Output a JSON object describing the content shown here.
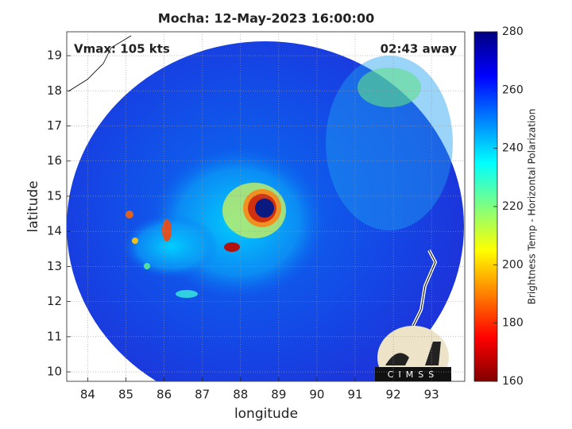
{
  "chart_data": {
    "type": "heatmap",
    "title": "Mocha: 12-May-2023 16:00:00",
    "annotations": [
      "Vmax: 105 kts",
      "02:43 away"
    ],
    "x_label": "longitude",
    "y_label": "latitude",
    "xlim": [
      83.45,
      93.87
    ],
    "ylim": [
      9.73,
      19.68
    ],
    "xticks": [
      84,
      85,
      86,
      87,
      88,
      89,
      90,
      91,
      92,
      93
    ],
    "yticks": [
      10,
      11,
      12,
      13,
      14,
      15,
      16,
      17,
      18,
      19
    ],
    "grid": true,
    "colorbar": {
      "label": "Brightness Temp - Horizontal Polarization",
      "lim": [
        160,
        280
      ],
      "ticks": [
        160,
        180,
        200,
        220,
        240,
        260,
        280
      ],
      "colormap": "jet"
    },
    "logo": "CIMSS"
  }
}
